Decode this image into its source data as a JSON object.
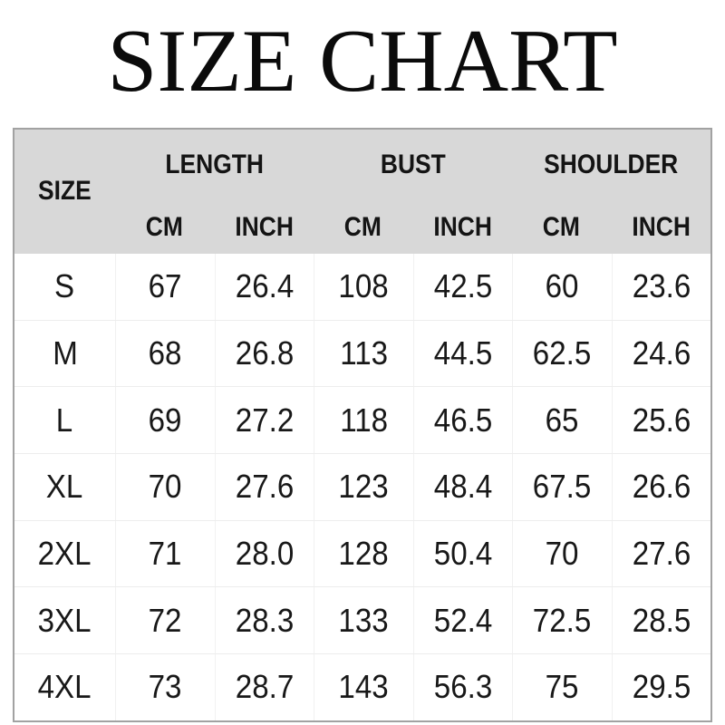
{
  "title": "SIZE CHART",
  "table": {
    "size_header": "SIZE",
    "groups": [
      "LENGTH",
      "BUST",
      "SHOULDER"
    ],
    "units": [
      "CM",
      "INCH",
      "CM",
      "INCH",
      "CM",
      "INCH"
    ],
    "rows": [
      {
        "size": "S",
        "values": [
          "67",
          "26.4",
          "108",
          "42.5",
          "60",
          "23.6"
        ]
      },
      {
        "size": "M",
        "values": [
          "68",
          "26.8",
          "113",
          "44.5",
          "62.5",
          "24.6"
        ]
      },
      {
        "size": "L",
        "values": [
          "69",
          "27.2",
          "118",
          "46.5",
          "65",
          "25.6"
        ]
      },
      {
        "size": "XL",
        "values": [
          "70",
          "27.6",
          "123",
          "48.4",
          "67.5",
          "26.6"
        ]
      },
      {
        "size": "2XL",
        "values": [
          "71",
          "28.0",
          "128",
          "50.4",
          "70",
          "27.6"
        ]
      },
      {
        "size": "3XL",
        "values": [
          "72",
          "28.3",
          "133",
          "52.4",
          "72.5",
          "28.5"
        ]
      },
      {
        "size": "4XL",
        "values": [
          "73",
          "28.7",
          "143",
          "56.3",
          "75",
          "29.5"
        ]
      }
    ]
  },
  "colors": {
    "header_background": "#d8d8d8",
    "table_border": "#a2a2a2",
    "grid_line": "#ededed",
    "text": "#141414",
    "page_background": "#ffffff"
  },
  "chart_data": {
    "type": "table",
    "title": "SIZE CHART",
    "column_groups": [
      "LENGTH",
      "BUST",
      "SHOULDER"
    ],
    "columns": [
      "SIZE",
      "LENGTH CM",
      "LENGTH INCH",
      "BUST CM",
      "BUST INCH",
      "SHOULDER CM",
      "SHOULDER INCH"
    ],
    "rows": [
      [
        "S",
        67,
        26.4,
        108,
        42.5,
        60,
        23.6
      ],
      [
        "M",
        68,
        26.8,
        113,
        44.5,
        62.5,
        24.6
      ],
      [
        "L",
        69,
        27.2,
        118,
        46.5,
        65,
        25.6
      ],
      [
        "XL",
        70,
        27.6,
        123,
        48.4,
        67.5,
        26.6
      ],
      [
        "2XL",
        71,
        28.0,
        128,
        50.4,
        70,
        27.6
      ],
      [
        "3XL",
        72,
        28.3,
        133,
        52.4,
        72.5,
        28.5
      ],
      [
        "4XL",
        73,
        28.7,
        143,
        56.3,
        75,
        29.5
      ]
    ]
  }
}
